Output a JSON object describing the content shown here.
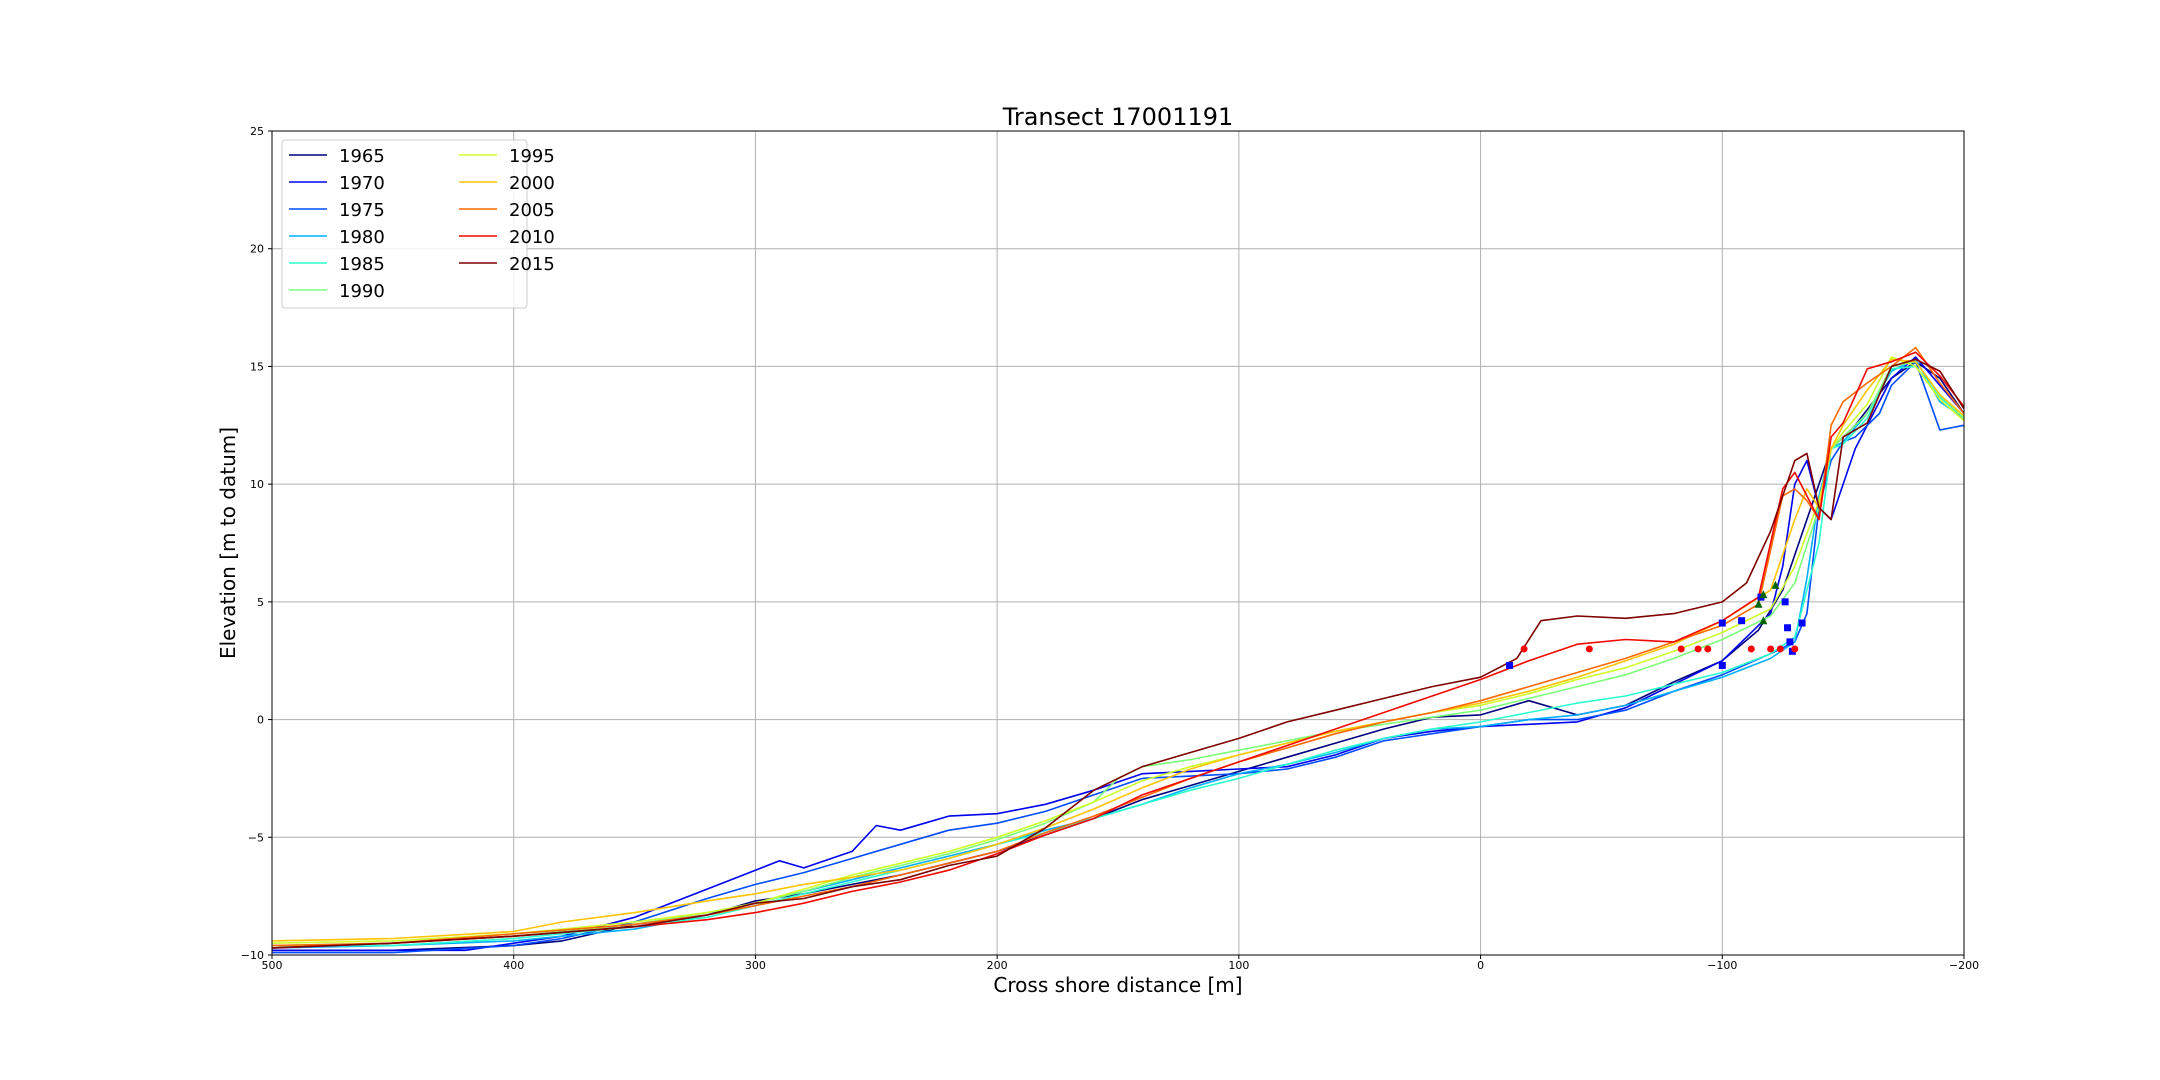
{
  "chart_data": {
    "type": "line",
    "title": "Transect 17001191",
    "xlabel": "Cross shore distance [m]",
    "ylabel": "Elevation [m to datum]",
    "xlim": [
      500,
      -200
    ],
    "ylim": [
      -10,
      25
    ],
    "x_ticks": [
      500,
      400,
      300,
      200,
      100,
      0,
      -100,
      -200
    ],
    "x_tick_labels": [
      "500",
      "400",
      "300",
      "200",
      "100",
      "0",
      "−100",
      "−200"
    ],
    "y_ticks": [
      -10,
      -5,
      0,
      5,
      10,
      15,
      20,
      25
    ],
    "y_tick_labels": [
      "−10",
      "−5",
      "0",
      "5",
      "10",
      "15",
      "20",
      "25"
    ],
    "grid": true,
    "legend_position": "top-left",
    "legend_columns": 2,
    "series": [
      {
        "name": "1965",
        "color": "#00007f",
        "x": [
          500,
          450,
          400,
          380,
          350,
          320,
          300,
          280,
          260,
          240,
          220,
          200,
          180,
          160,
          140,
          120,
          100,
          80,
          60,
          40,
          20,
          0,
          -20,
          -40,
          -60,
          -80,
          -100,
          -115,
          -125,
          -135,
          -145,
          -155,
          -170,
          -180,
          -190,
          -200
        ],
        "y": [
          -9.8,
          -9.8,
          -9.6,
          -9.4,
          -8.7,
          -8.3,
          -7.7,
          -7.4,
          -7.0,
          -6.6,
          -6.1,
          -5.6,
          -4.9,
          -4.2,
          -3.4,
          -2.8,
          -2.2,
          -1.6,
          -1.0,
          -0.4,
          0.1,
          0.2,
          0.8,
          0.2,
          0.6,
          1.6,
          2.5,
          3.8,
          5.5,
          8.5,
          11.5,
          12.5,
          14.5,
          15.2,
          14.5,
          13.0
        ]
      },
      {
        "name": "1970",
        "color": "#0000f1",
        "x": [
          500,
          450,
          420,
          400,
          380,
          350,
          320,
          300,
          290,
          280,
          260,
          250,
          240,
          230,
          220,
          200,
          180,
          160,
          140,
          120,
          100,
          80,
          60,
          40,
          20,
          0,
          -20,
          -40,
          -60,
          -80,
          -100,
          -110,
          -120,
          -125,
          -130,
          -135,
          -140,
          -145,
          -155,
          -170,
          -180,
          -190,
          -200
        ],
        "y": [
          -9.8,
          -9.8,
          -9.8,
          -9.5,
          -9.2,
          -8.4,
          -7.2,
          -6.4,
          -6.0,
          -6.3,
          -5.6,
          -4.5,
          -4.7,
          -4.4,
          -4.1,
          -4.0,
          -3.6,
          -3.0,
          -2.3,
          -2.2,
          -2.1,
          -2.0,
          -1.5,
          -0.8,
          -0.5,
          -0.3,
          -0.2,
          -0.1,
          0.5,
          1.5,
          2.5,
          3.5,
          4.5,
          6.5,
          10.0,
          11.0,
          9.0,
          8.5,
          11.5,
          14.5,
          15.4,
          14.2,
          13.0
        ]
      },
      {
        "name": "1975",
        "color": "#004cff",
        "x": [
          500,
          450,
          400,
          380,
          350,
          320,
          300,
          280,
          260,
          240,
          220,
          200,
          180,
          160,
          140,
          120,
          100,
          80,
          60,
          40,
          20,
          0,
          -20,
          -40,
          -60,
          -80,
          -100,
          -120,
          -130,
          -135,
          -140,
          -145,
          -150,
          -155,
          -165,
          -170,
          -180,
          -190,
          -200
        ],
        "y": [
          -9.9,
          -9.9,
          -9.6,
          -9.3,
          -8.6,
          -7.6,
          -7.0,
          -6.5,
          -5.9,
          -5.3,
          -4.7,
          -4.4,
          -3.9,
          -3.2,
          -2.5,
          -2.4,
          -2.3,
          -2.1,
          -1.6,
          -0.9,
          -0.6,
          -0.3,
          0.0,
          0.0,
          0.4,
          1.2,
          1.9,
          2.8,
          3.3,
          4.5,
          9.0,
          11.0,
          11.8,
          12.0,
          13.0,
          14.2,
          15.2,
          12.3,
          12.5
        ]
      },
      {
        "name": "1980",
        "color": "#00b0ff",
        "x": [
          500,
          450,
          400,
          350,
          320,
          300,
          280,
          260,
          240,
          220,
          200,
          180,
          160,
          140,
          120,
          100,
          80,
          60,
          40,
          20,
          0,
          -20,
          -40,
          -60,
          -80,
          -100,
          -120,
          -130,
          -135,
          -140,
          -145,
          -150,
          -160,
          -170,
          -180,
          -190,
          -200
        ],
        "y": [
          -9.7,
          -9.6,
          -9.4,
          -8.9,
          -8.3,
          -7.8,
          -7.3,
          -6.8,
          -6.3,
          -5.8,
          -5.3,
          -4.7,
          -4.2,
          -3.6,
          -2.9,
          -2.3,
          -1.9,
          -1.4,
          -0.8,
          -0.4,
          -0.3,
          0.0,
          0.2,
          0.6,
          1.2,
          1.8,
          2.6,
          3.3,
          6.0,
          9.5,
          11.5,
          11.8,
          13.0,
          14.8,
          15.3,
          13.5,
          12.8
        ]
      },
      {
        "name": "1985",
        "color": "#29ffce",
        "x": [
          500,
          450,
          400,
          350,
          320,
          300,
          280,
          260,
          240,
          220,
          200,
          180,
          160,
          140,
          120,
          100,
          80,
          60,
          40,
          20,
          0,
          -20,
          -40,
          -60,
          -80,
          -100,
          -120,
          -130,
          -140,
          -145,
          -150,
          -160,
          -170,
          -180,
          -190,
          -200
        ],
        "y": [
          -9.6,
          -9.6,
          -9.3,
          -8.8,
          -8.4,
          -7.9,
          -7.4,
          -6.9,
          -6.4,
          -5.9,
          -5.3,
          -4.8,
          -4.2,
          -3.6,
          -3.0,
          -2.5,
          -1.9,
          -1.3,
          -0.8,
          -0.4,
          -0.1,
          0.3,
          0.7,
          1.0,
          1.5,
          2.0,
          2.8,
          3.5,
          7.5,
          11.5,
          11.7,
          12.8,
          14.9,
          15.0,
          13.7,
          12.8
        ]
      },
      {
        "name": "1990",
        "color": "#7dff7a",
        "x": [
          500,
          450,
          400,
          350,
          320,
          300,
          280,
          260,
          240,
          220,
          200,
          180,
          160,
          150,
          140,
          120,
          100,
          80,
          60,
          40,
          20,
          0,
          -20,
          -40,
          -60,
          -80,
          -100,
          -120,
          -130,
          -140,
          -145,
          -150,
          -160,
          -170,
          -180,
          -190,
          -200
        ],
        "y": [
          -9.6,
          -9.5,
          -9.2,
          -8.7,
          -8.2,
          -7.8,
          -7.3,
          -6.7,
          -6.2,
          -5.7,
          -5.1,
          -4.4,
          -3.5,
          -2.5,
          -2.0,
          -1.7,
          -1.3,
          -0.9,
          -0.5,
          -0.2,
          0.1,
          0.4,
          0.9,
          1.4,
          1.9,
          2.6,
          3.4,
          4.4,
          5.8,
          9.0,
          11.5,
          12.0,
          13.0,
          15.0,
          15.2,
          13.8,
          12.8
        ]
      },
      {
        "name": "1995",
        "color": "#ceff29",
        "x": [
          500,
          450,
          400,
          350,
          320,
          300,
          280,
          260,
          240,
          220,
          200,
          180,
          160,
          140,
          120,
          100,
          80,
          60,
          40,
          20,
          0,
          -20,
          -40,
          -60,
          -80,
          -100,
          -120,
          -130,
          -140,
          -145,
          -150,
          -160,
          -170,
          -180,
          -190,
          -200
        ],
        "y": [
          -9.5,
          -9.4,
          -9.1,
          -8.6,
          -8.2,
          -7.8,
          -7.2,
          -6.6,
          -6.1,
          -5.6,
          -5.0,
          -4.3,
          -3.5,
          -2.6,
          -2.0,
          -1.5,
          -1.0,
          -0.5,
          -0.1,
          0.3,
          0.6,
          1.1,
          1.7,
          2.2,
          2.9,
          3.7,
          4.7,
          6.5,
          9.3,
          11.5,
          12.2,
          13.4,
          15.4,
          15.0,
          13.6,
          12.7
        ]
      },
      {
        "name": "2000",
        "color": "#ffc400",
        "x": [
          500,
          450,
          400,
          380,
          350,
          320,
          300,
          280,
          260,
          240,
          220,
          200,
          180,
          160,
          140,
          120,
          100,
          80,
          60,
          40,
          20,
          0,
          -20,
          -40,
          -60,
          -80,
          -100,
          -120,
          -130,
          -135,
          -140,
          -145,
          -150,
          -160,
          -170,
          -180,
          -190,
          -200
        ],
        "y": [
          -9.4,
          -9.3,
          -9.0,
          -8.6,
          -8.2,
          -7.7,
          -7.4,
          -7.0,
          -6.7,
          -6.4,
          -5.9,
          -5.3,
          -4.6,
          -3.8,
          -2.9,
          -2.1,
          -1.5,
          -1.0,
          -0.5,
          -0.1,
          0.3,
          0.7,
          1.2,
          1.8,
          2.5,
          3.2,
          4.2,
          5.5,
          8.5,
          9.8,
          9.0,
          11.5,
          12.5,
          14.0,
          15.3,
          15.2,
          13.8,
          12.9
        ]
      },
      {
        "name": "2005",
        "color": "#ff6800",
        "x": [
          500,
          450,
          400,
          350,
          320,
          300,
          280,
          260,
          240,
          220,
          200,
          180,
          160,
          140,
          120,
          100,
          80,
          60,
          40,
          20,
          0,
          -20,
          -40,
          -60,
          -80,
          -100,
          -115,
          -125,
          -130,
          -135,
          -140,
          -145,
          -150,
          -160,
          -170,
          -180,
          -190,
          -200
        ],
        "y": [
          -9.6,
          -9.5,
          -9.1,
          -8.7,
          -8.3,
          -7.9,
          -7.5,
          -7.1,
          -6.6,
          -6.1,
          -5.6,
          -4.8,
          -4.1,
          -3.3,
          -2.5,
          -1.8,
          -1.2,
          -0.6,
          -0.1,
          0.3,
          0.8,
          1.4,
          2.0,
          2.6,
          3.3,
          4.0,
          4.9,
          9.5,
          9.8,
          9.3,
          8.5,
          12.5,
          13.5,
          14.3,
          15.0,
          15.8,
          14.3,
          13.0
        ]
      },
      {
        "name": "2010",
        "color": "#f10800",
        "x": [
          500,
          450,
          400,
          350,
          320,
          300,
          280,
          260,
          240,
          220,
          200,
          180,
          160,
          140,
          120,
          100,
          80,
          60,
          40,
          20,
          0,
          -20,
          -40,
          -60,
          -80,
          -100,
          -115,
          -125,
          -130,
          -135,
          -140,
          -145,
          -150,
          -160,
          -170,
          -180,
          -190,
          -200
        ],
        "y": [
          -9.7,
          -9.5,
          -9.2,
          -8.8,
          -8.5,
          -8.2,
          -7.8,
          -7.3,
          -6.9,
          -6.4,
          -5.7,
          -4.9,
          -4.2,
          -3.2,
          -2.5,
          -1.8,
          -1.1,
          -0.4,
          0.3,
          1.0,
          1.7,
          2.5,
          3.2,
          3.4,
          3.3,
          4.2,
          5.2,
          9.8,
          10.5,
          9.5,
          8.5,
          12.0,
          12.6,
          14.9,
          15.2,
          15.6,
          14.6,
          13.3
        ]
      },
      {
        "name": "2015",
        "color": "#7f0000",
        "x": [
          500,
          450,
          400,
          350,
          320,
          300,
          280,
          260,
          240,
          220,
          200,
          180,
          160,
          140,
          120,
          100,
          80,
          60,
          40,
          20,
          0,
          -15,
          -25,
          -40,
          -60,
          -80,
          -100,
          -110,
          -120,
          -130,
          -135,
          -140,
          -145,
          -150,
          -160,
          -170,
          -180,
          -190,
          -200
        ],
        "y": [
          -9.7,
          -9.5,
          -9.2,
          -8.8,
          -8.3,
          -7.8,
          -7.6,
          -7.1,
          -6.8,
          -6.2,
          -5.8,
          -4.6,
          -3.0,
          -2.0,
          -1.4,
          -0.8,
          -0.1,
          0.4,
          0.9,
          1.4,
          1.8,
          2.6,
          4.2,
          4.4,
          4.3,
          4.5,
          5.0,
          5.8,
          8.0,
          11.0,
          11.3,
          9.0,
          8.5,
          12.0,
          12.6,
          15.0,
          15.3,
          14.8,
          13.2
        ]
      }
    ],
    "markers": [
      {
        "shape": "square",
        "color": "#0000ff",
        "points": [
          [
            -12,
            2.3
          ],
          [
            -100,
            4.1
          ],
          [
            -100,
            2.3
          ],
          [
            -108,
            4.2
          ],
          [
            -116,
            5.2
          ],
          [
            -126,
            5.0
          ],
          [
            -127,
            3.9
          ],
          [
            -128,
            3.3
          ],
          [
            -129,
            2.9
          ],
          [
            -133,
            4.1
          ]
        ]
      },
      {
        "shape": "circle",
        "color": "#ff0000",
        "points": [
          [
            -18,
            3.0
          ],
          [
            -45,
            3.0
          ],
          [
            -83,
            3.0
          ],
          [
            -90,
            3.0
          ],
          [
            -94,
            3.0
          ],
          [
            -112,
            3.0
          ],
          [
            -120,
            3.0
          ],
          [
            -124,
            3.0
          ],
          [
            -130,
            3.0
          ]
        ]
      },
      {
        "shape": "triangle",
        "color": "#006400",
        "points": [
          [
            -115,
            4.9
          ],
          [
            -117,
            5.3
          ],
          [
            -117,
            4.2
          ],
          [
            -122,
            5.7
          ]
        ]
      }
    ]
  }
}
